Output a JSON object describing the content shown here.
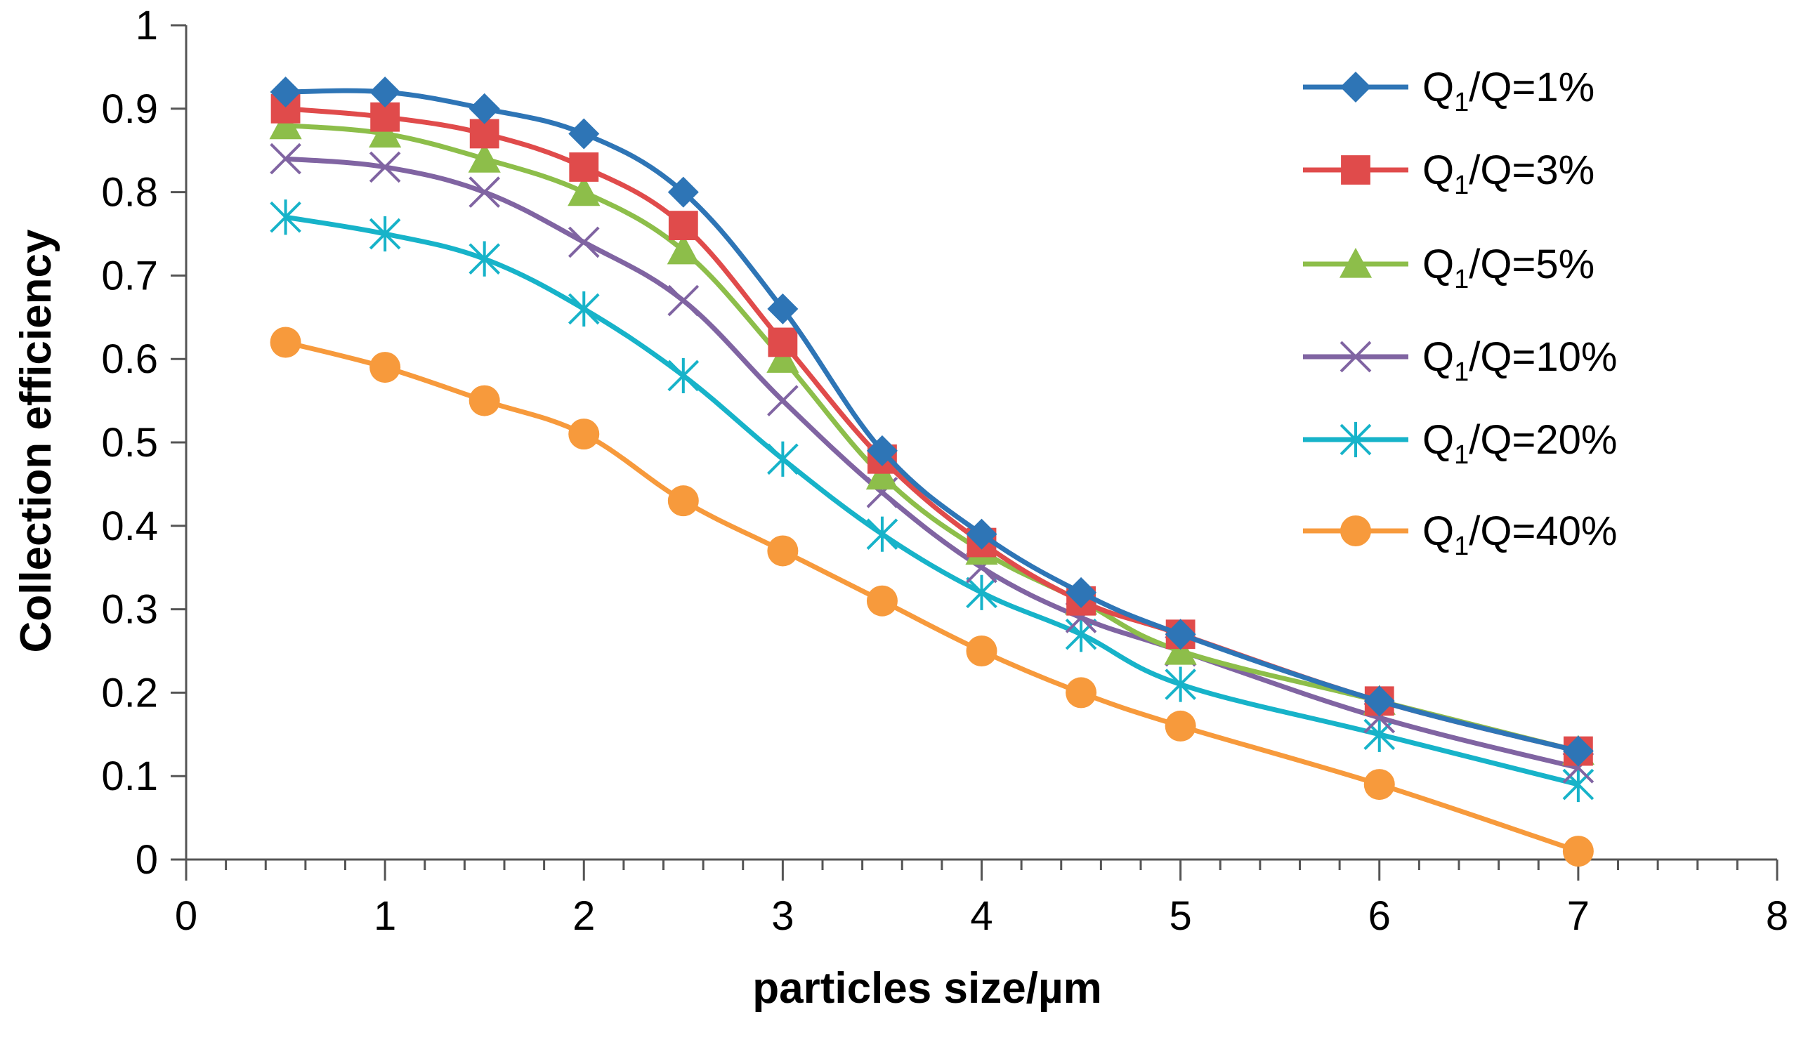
{
  "chart_data": {
    "type": "line",
    "title": "",
    "xlabel": "particles size/µm",
    "ylabel": "Collection efficiency",
    "xlim": [
      0,
      8
    ],
    "ylim": [
      0,
      1
    ],
    "xticks": [
      0,
      1,
      2,
      3,
      4,
      5,
      6,
      7,
      8
    ],
    "yticks": [
      0,
      0.1,
      0.2,
      0.3,
      0.4,
      0.5,
      0.6,
      0.7,
      0.8,
      0.9,
      1
    ],
    "grid": false,
    "legend_position": "right",
    "x": [
      0.5,
      1,
      1.5,
      2,
      2.5,
      3,
      3.5,
      4,
      4.5,
      5,
      6,
      7
    ],
    "series": [
      {
        "name": "Q1/Q=1%",
        "label_main": "Q",
        "label_sub": "1",
        "label_rest": "/Q=1%",
        "color": "#2E75B6",
        "marker": "diamond",
        "values": [
          0.92,
          0.92,
          0.9,
          0.87,
          0.8,
          0.66,
          0.49,
          0.39,
          0.32,
          0.27,
          0.19,
          0.13
        ]
      },
      {
        "name": "Q1/Q=3%",
        "label_main": "Q",
        "label_sub": "1",
        "label_rest": "/Q=3%",
        "color": "#E04B4B",
        "marker": "square",
        "values": [
          0.9,
          0.89,
          0.87,
          0.83,
          0.76,
          0.62,
          0.48,
          0.38,
          0.31,
          0.27,
          0.19,
          0.13
        ]
      },
      {
        "name": "Q1/Q=5%",
        "label_main": "Q",
        "label_sub": "1",
        "label_rest": "/Q=5%",
        "color": "#8DBE4A",
        "marker": "triangle",
        "values": [
          0.88,
          0.87,
          0.84,
          0.8,
          0.73,
          0.6,
          0.46,
          0.37,
          0.31,
          0.25,
          0.19,
          0.13
        ]
      },
      {
        "name": "Q1/Q=10%",
        "label_main": "Q",
        "label_sub": "1",
        "label_rest": "/Q=10%",
        "color": "#8064A2",
        "marker": "x",
        "values": [
          0.84,
          0.83,
          0.8,
          0.74,
          0.67,
          0.55,
          0.44,
          0.35,
          0.29,
          0.25,
          0.17,
          0.11
        ]
      },
      {
        "name": "Q1/Q=20%",
        "label_main": "Q",
        "label_sub": "1",
        "label_rest": "/Q=20%",
        "color": "#17B3C9",
        "marker": "asterisk",
        "values": [
          0.77,
          0.75,
          0.72,
          0.66,
          0.58,
          0.48,
          0.39,
          0.32,
          0.27,
          0.21,
          0.15,
          0.09
        ]
      },
      {
        "name": "Q1/Q=40%",
        "label_main": "Q",
        "label_sub": "1",
        "label_rest": "/Q=40%",
        "color": "#F79A3C",
        "marker": "circle",
        "values": [
          0.62,
          0.59,
          0.55,
          0.51,
          0.43,
          0.37,
          0.31,
          0.25,
          0.2,
          0.16,
          0.09,
          0.01
        ]
      }
    ]
  }
}
